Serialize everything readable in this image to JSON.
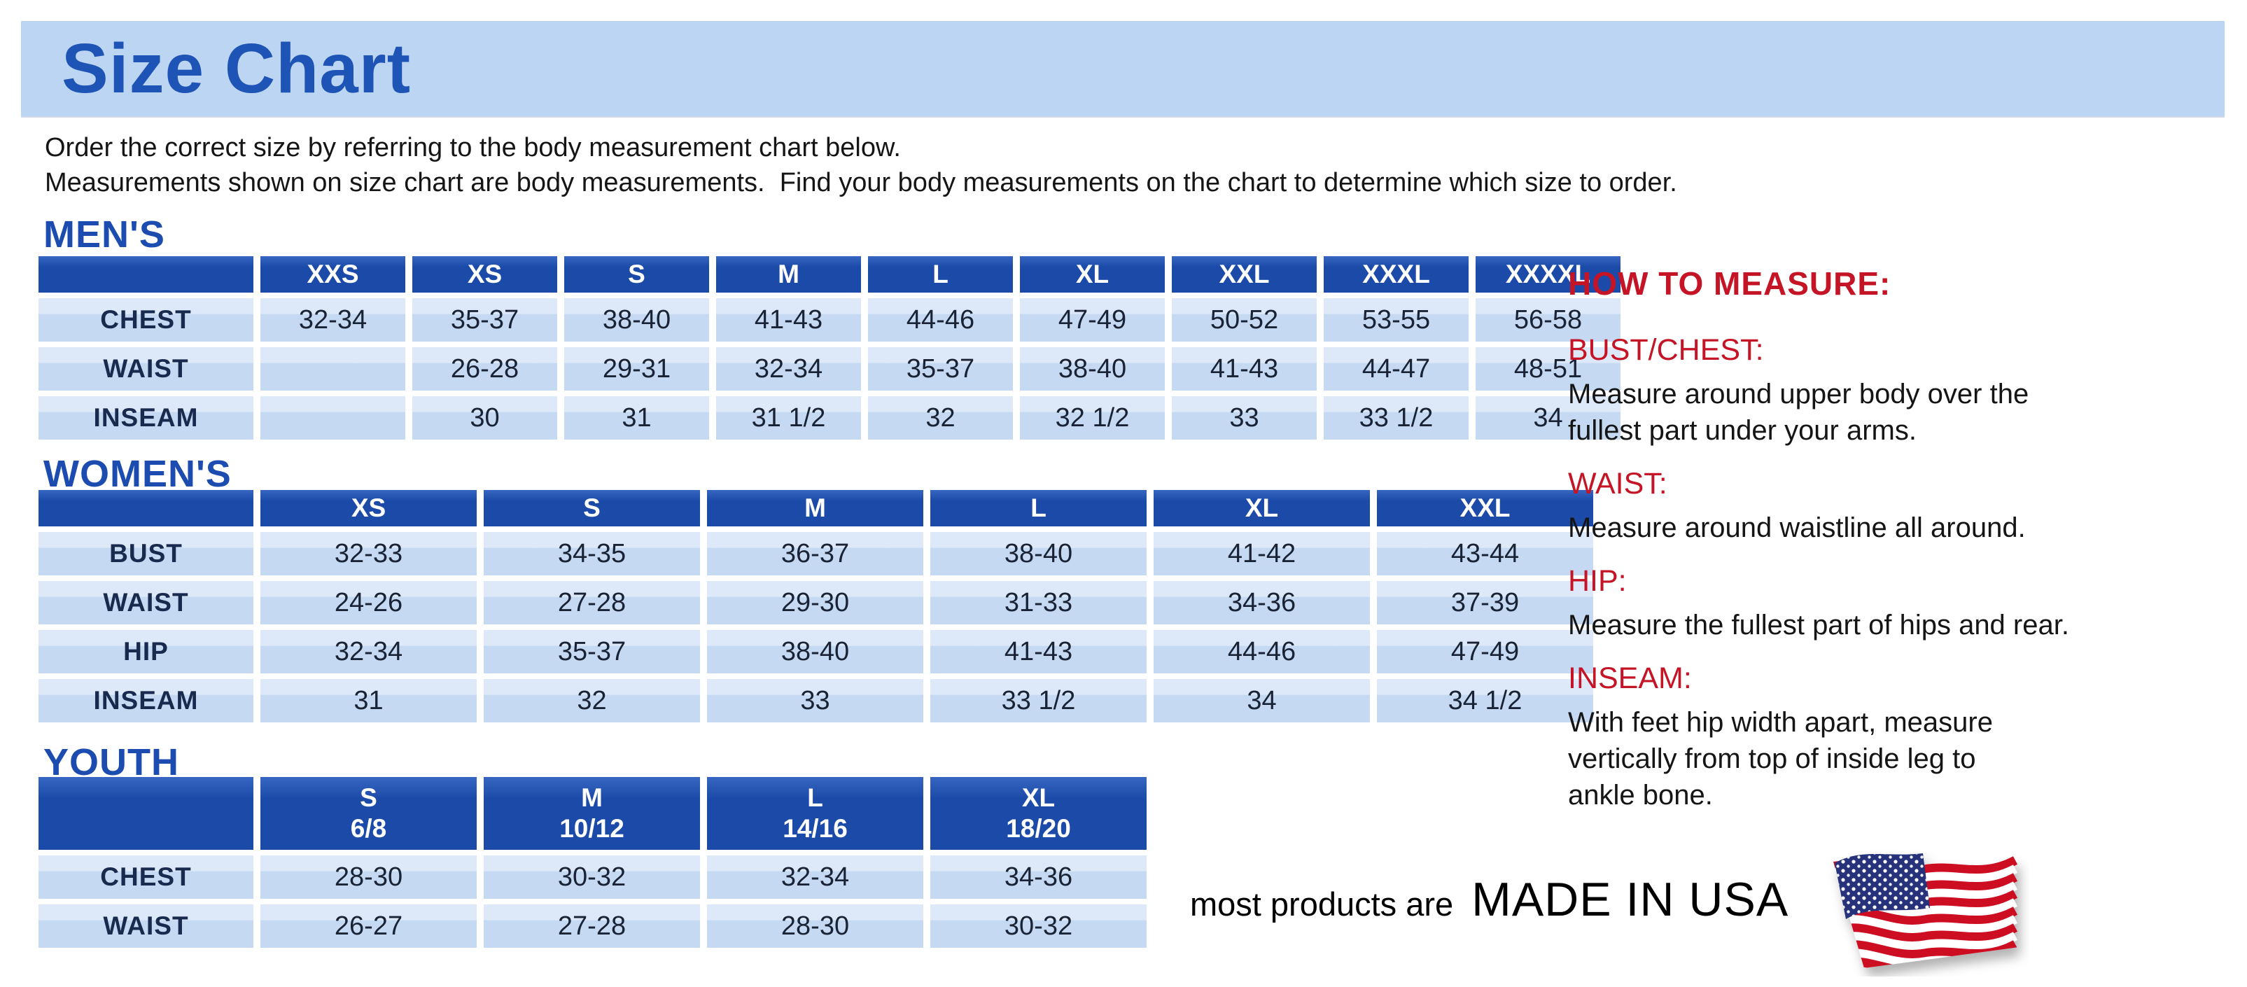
{
  "header": {
    "title": "Size Chart"
  },
  "intro": {
    "line1": "Order the correct size by referring to the body measurement chart below.",
    "line2": "Measurements shown on size chart are body measurements.  Find your body measurements on the chart to determine which size to order."
  },
  "tables": {
    "mens": {
      "heading": "MEN'S",
      "columns": [
        "XXS",
        "XS",
        "S",
        "M",
        "L",
        "XL",
        "XXL",
        "XXXL",
        "XXXXL"
      ],
      "rows": [
        {
          "label": "CHEST",
          "values": [
            "32-34",
            "35-37",
            "38-40",
            "41-43",
            "44-46",
            "47-49",
            "50-52",
            "53-55",
            "56-58"
          ]
        },
        {
          "label": "WAIST",
          "values": [
            "",
            "26-28",
            "29-31",
            "32-34",
            "35-37",
            "38-40",
            "41-43",
            "44-47",
            "48-51"
          ]
        },
        {
          "label": "INSEAM",
          "values": [
            "",
            "30",
            "31",
            "31 1/2",
            "32",
            "32 1/2",
            "33",
            "33 1/2",
            "34"
          ]
        }
      ]
    },
    "womens": {
      "heading": "WOMEN'S",
      "columns": [
        "XS",
        "S",
        "M",
        "L",
        "XL",
        "XXL"
      ],
      "rows": [
        {
          "label": "BUST",
          "values": [
            "32-33",
            "34-35",
            "36-37",
            "38-40",
            "41-42",
            "43-44"
          ]
        },
        {
          "label": "WAIST",
          "values": [
            "24-26",
            "27-28",
            "29-30",
            "31-33",
            "34-36",
            "37-39"
          ]
        },
        {
          "label": "HIP",
          "values": [
            "32-34",
            "35-37",
            "38-40",
            "41-43",
            "44-46",
            "47-49"
          ]
        },
        {
          "label": "INSEAM",
          "values": [
            "31",
            "32",
            "33",
            "33 1/2",
            "34",
            "34 1/2"
          ]
        }
      ]
    },
    "youth": {
      "heading": "YOUTH",
      "columns": [
        "S\n6/8",
        "M\n10/12",
        "L\n14/16",
        "XL\n18/20"
      ],
      "rows": [
        {
          "label": "CHEST",
          "values": [
            "28-30",
            "30-32",
            "32-34",
            "34-36"
          ]
        },
        {
          "label": "WAIST",
          "values": [
            "26-27",
            "27-28",
            "28-30",
            "30-32"
          ]
        }
      ]
    }
  },
  "howto": {
    "title": "HOW TO MEASURE:",
    "sections": [
      {
        "label": "BUST/CHEST:",
        "text": "Measure around upper body over the\nfullest part under your arms."
      },
      {
        "label": "WAIST:",
        "text": "Measure around waistline all around."
      },
      {
        "label": "HIP:",
        "text": "Measure the fullest part of hips and rear."
      },
      {
        "label": "INSEAM:",
        "text": "With feet hip width apart, measure\nvertically from top of inside leg to\nankle bone."
      }
    ]
  },
  "footer": {
    "prefix": "most products are",
    "emphasis": "MADE IN USA",
    "flag_icon": "usa-flag"
  },
  "colors": {
    "banner_bg": "#bcd5f3",
    "title_blue": "#1d54b5",
    "section_heading_blue": "#1c4cb0",
    "table_header_blue": "#1b4aa8",
    "table_header_blue_light": "#3766c2",
    "cell_blue": "#c5daf2",
    "cell_blue_light": "#dde9f8",
    "row_label_navy": "#182a4d",
    "cell_text_navy": "#1a2335",
    "measure_red": "#c41425",
    "body_text": "#151515",
    "flag_red": "#cc1122",
    "flag_blue": "#25307a"
  }
}
